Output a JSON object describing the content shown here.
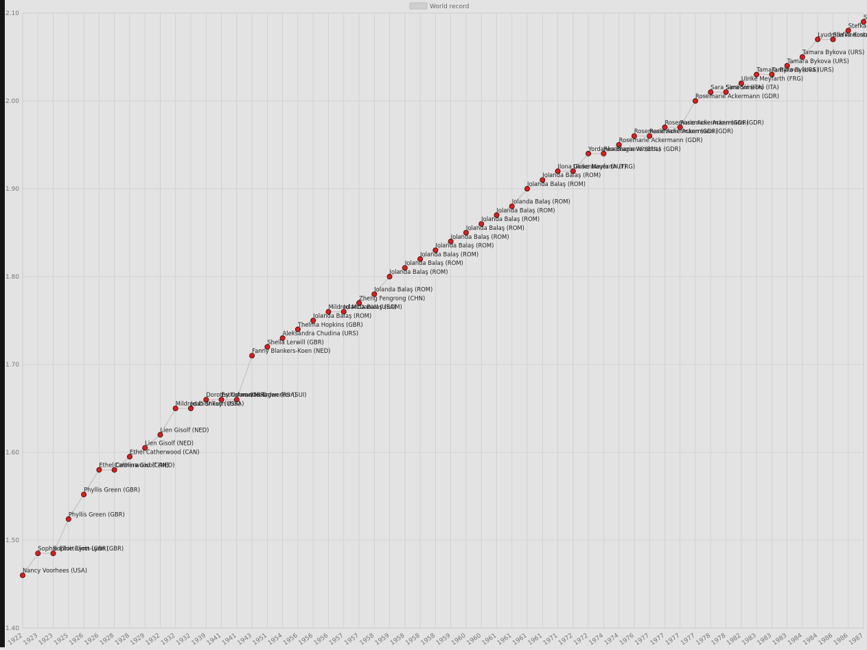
{
  "chart_data": {
    "type": "line",
    "legend": {
      "position": "top-center",
      "entries": [
        "World record"
      ]
    },
    "ylim": [
      1.4,
      2.1
    ],
    "yticks": [
      "1.40",
      "1.50",
      "1.60",
      "1.70",
      "1.80",
      "1.90",
      "2.00",
      "2.10"
    ],
    "grid": true,
    "colors": {
      "background": "#e3e3e3",
      "grid": "#cbcbcb",
      "line": "#c9c9c9",
      "marker": "#d42020",
      "marker_edge": "#3a0a0a",
      "text": "#222222",
      "tick": "#777777"
    },
    "series": [
      {
        "name": "World record",
        "points": [
          {
            "x": "1922",
            "y": 1.46,
            "label": "Nancy Voorhees (USA)"
          },
          {
            "x": "1923",
            "y": 1.485,
            "label": "Sophie Eliott-Lynn (GBR)"
          },
          {
            "x": "1923",
            "y": 1.485,
            "label": "Sophie Eliott-Lynn (GBR)"
          },
          {
            "x": "1925",
            "y": 1.524,
            "label": "Phyllis Green (GBR)"
          },
          {
            "x": "1926",
            "y": 1.552,
            "label": "Phyllis Green (GBR)"
          },
          {
            "x": "1926",
            "y": 1.58,
            "label": "Ethel Catherwood (CAN)"
          },
          {
            "x": "1928",
            "y": 1.58,
            "label": "Carolina Gisolf (NED)"
          },
          {
            "x": "1928",
            "y": 1.595,
            "label": "Ethel Catherwood (CAN)"
          },
          {
            "x": "1929",
            "y": 1.605,
            "label": "Lien Gisolf (NED)"
          },
          {
            "x": "1932",
            "y": 1.62,
            "label": "Lien Gisolf (NED)"
          },
          {
            "x": "1932",
            "y": 1.65,
            "label": "Mildred Didrikson (USA)"
          },
          {
            "x": "1932",
            "y": 1.65,
            "label": "Jean Shiley (USA)"
          },
          {
            "x": "1939",
            "y": 1.66,
            "label": "Dorothy Odam (GBR)"
          },
          {
            "x": "1941",
            "y": 1.66,
            "label": "Esther van Heerden (RSA)"
          },
          {
            "x": "1941",
            "y": 1.66,
            "label": "Annette Tagwerker (SUI)"
          },
          {
            "x": "1943",
            "y": 1.71,
            "label": "Fanny Blankers-Koen (NED)"
          },
          {
            "x": "1951",
            "y": 1.72,
            "label": "Sheila Lerwill (GBR)"
          },
          {
            "x": "1954",
            "y": 1.73,
            "label": "Aleksandra Chudina (URS)"
          },
          {
            "x": "1956",
            "y": 1.74,
            "label": "Thelma Hopkins (GBR)"
          },
          {
            "x": "1956",
            "y": 1.75,
            "label": "Iolanda Balaş (ROM)"
          },
          {
            "x": "1956",
            "y": 1.76,
            "label": "Mildred McDaniel (USA)"
          },
          {
            "x": "1957",
            "y": 1.76,
            "label": "Iolanda Balaş (ROM)"
          },
          {
            "x": "1957",
            "y": 1.77,
            "label": "Zheng Fengrong (CHN)"
          },
          {
            "x": "1958",
            "y": 1.78,
            "label": "Iolanda Balaş (ROM)"
          },
          {
            "x": "1959",
            "y": 1.8,
            "label": "Iolanda Balaş (ROM)"
          },
          {
            "x": "1958",
            "y": 1.81,
            "label": "Iolanda Balaş (ROM)"
          },
          {
            "x": "1958",
            "y": 1.82,
            "label": "Iolanda Balaş (ROM)"
          },
          {
            "x": "1958",
            "y": 1.83,
            "label": "Iolanda Balaş (ROM)"
          },
          {
            "x": "1959",
            "y": 1.84,
            "label": "Iolanda Balaş (ROM)"
          },
          {
            "x": "1960",
            "y": 1.85,
            "label": "Iolanda Balaş (ROM)"
          },
          {
            "x": "1960",
            "y": 1.86,
            "label": "Iolanda Balaş (ROM)"
          },
          {
            "x": "1961",
            "y": 1.87,
            "label": "Iolanda Balaş (ROM)"
          },
          {
            "x": "1961",
            "y": 1.88,
            "label": "Iolanda Balaş (ROM)"
          },
          {
            "x": "1961",
            "y": 1.9,
            "label": "Iolanda Balaş (ROM)"
          },
          {
            "x": "1961",
            "y": 1.91,
            "label": "Iolanda Balaş (ROM)"
          },
          {
            "x": "1971",
            "y": 1.92,
            "label": "Ilona Gusenbauer (AUT)"
          },
          {
            "x": "1972",
            "y": 1.92,
            "label": "Ulrike Meyfarth (FRG)"
          },
          {
            "x": "1972",
            "y": 1.94,
            "label": "Yordanka Blagoeva (BUL)"
          },
          {
            "x": "1974",
            "y": 1.94,
            "label": "Rosemarie Witschas (GDR)"
          },
          {
            "x": "1974",
            "y": 1.95,
            "label": "Rosemarie Ackermann (GDR)"
          },
          {
            "x": "1976",
            "y": 1.96,
            "label": "Rosemarie Ackermann (GDR)"
          },
          {
            "x": "1977",
            "y": 1.96,
            "label": "Rosemarie Ackermann (GDR)"
          },
          {
            "x": "1977",
            "y": 1.97,
            "label": "Rosemarie Ackermann (GDR)"
          },
          {
            "x": "1977",
            "y": 1.97,
            "label": "Rosemarie Ackermann (GDR)"
          },
          {
            "x": "1977",
            "y": 2.0,
            "label": "Rosemarie Ackermann (GDR)"
          },
          {
            "x": "1978",
            "y": 2.01,
            "label": "Sara Simeoni (ITA)"
          },
          {
            "x": "1978",
            "y": 2.01,
            "label": "Sara Simeoni (ITA)"
          },
          {
            "x": "1982",
            "y": 2.02,
            "label": "Ulrike Meyfarth (FRG)"
          },
          {
            "x": "1983",
            "y": 2.03,
            "label": "Tamara Bykova (URS)"
          },
          {
            "x": "1983",
            "y": 2.03,
            "label": "Tamara Bykova (URS)"
          },
          {
            "x": "1983",
            "y": 2.04,
            "label": "Tamara Bykova (URS)"
          },
          {
            "x": "1984",
            "y": 2.05,
            "label": "Tamara Bykova (URS)"
          },
          {
            "x": "1984",
            "y": 2.07,
            "label": "Lyudmila Andonova (BUL)"
          },
          {
            "x": "1986",
            "y": 2.07,
            "label": "Stefka Kostadinova (BUL)"
          },
          {
            "x": "1986",
            "y": 2.08,
            "label": "Stefka Kostadinova (BUL)"
          },
          {
            "x": "1987",
            "y": 2.09,
            "label": "Stefka Kostadinova (BUL)"
          }
        ]
      }
    ]
  }
}
